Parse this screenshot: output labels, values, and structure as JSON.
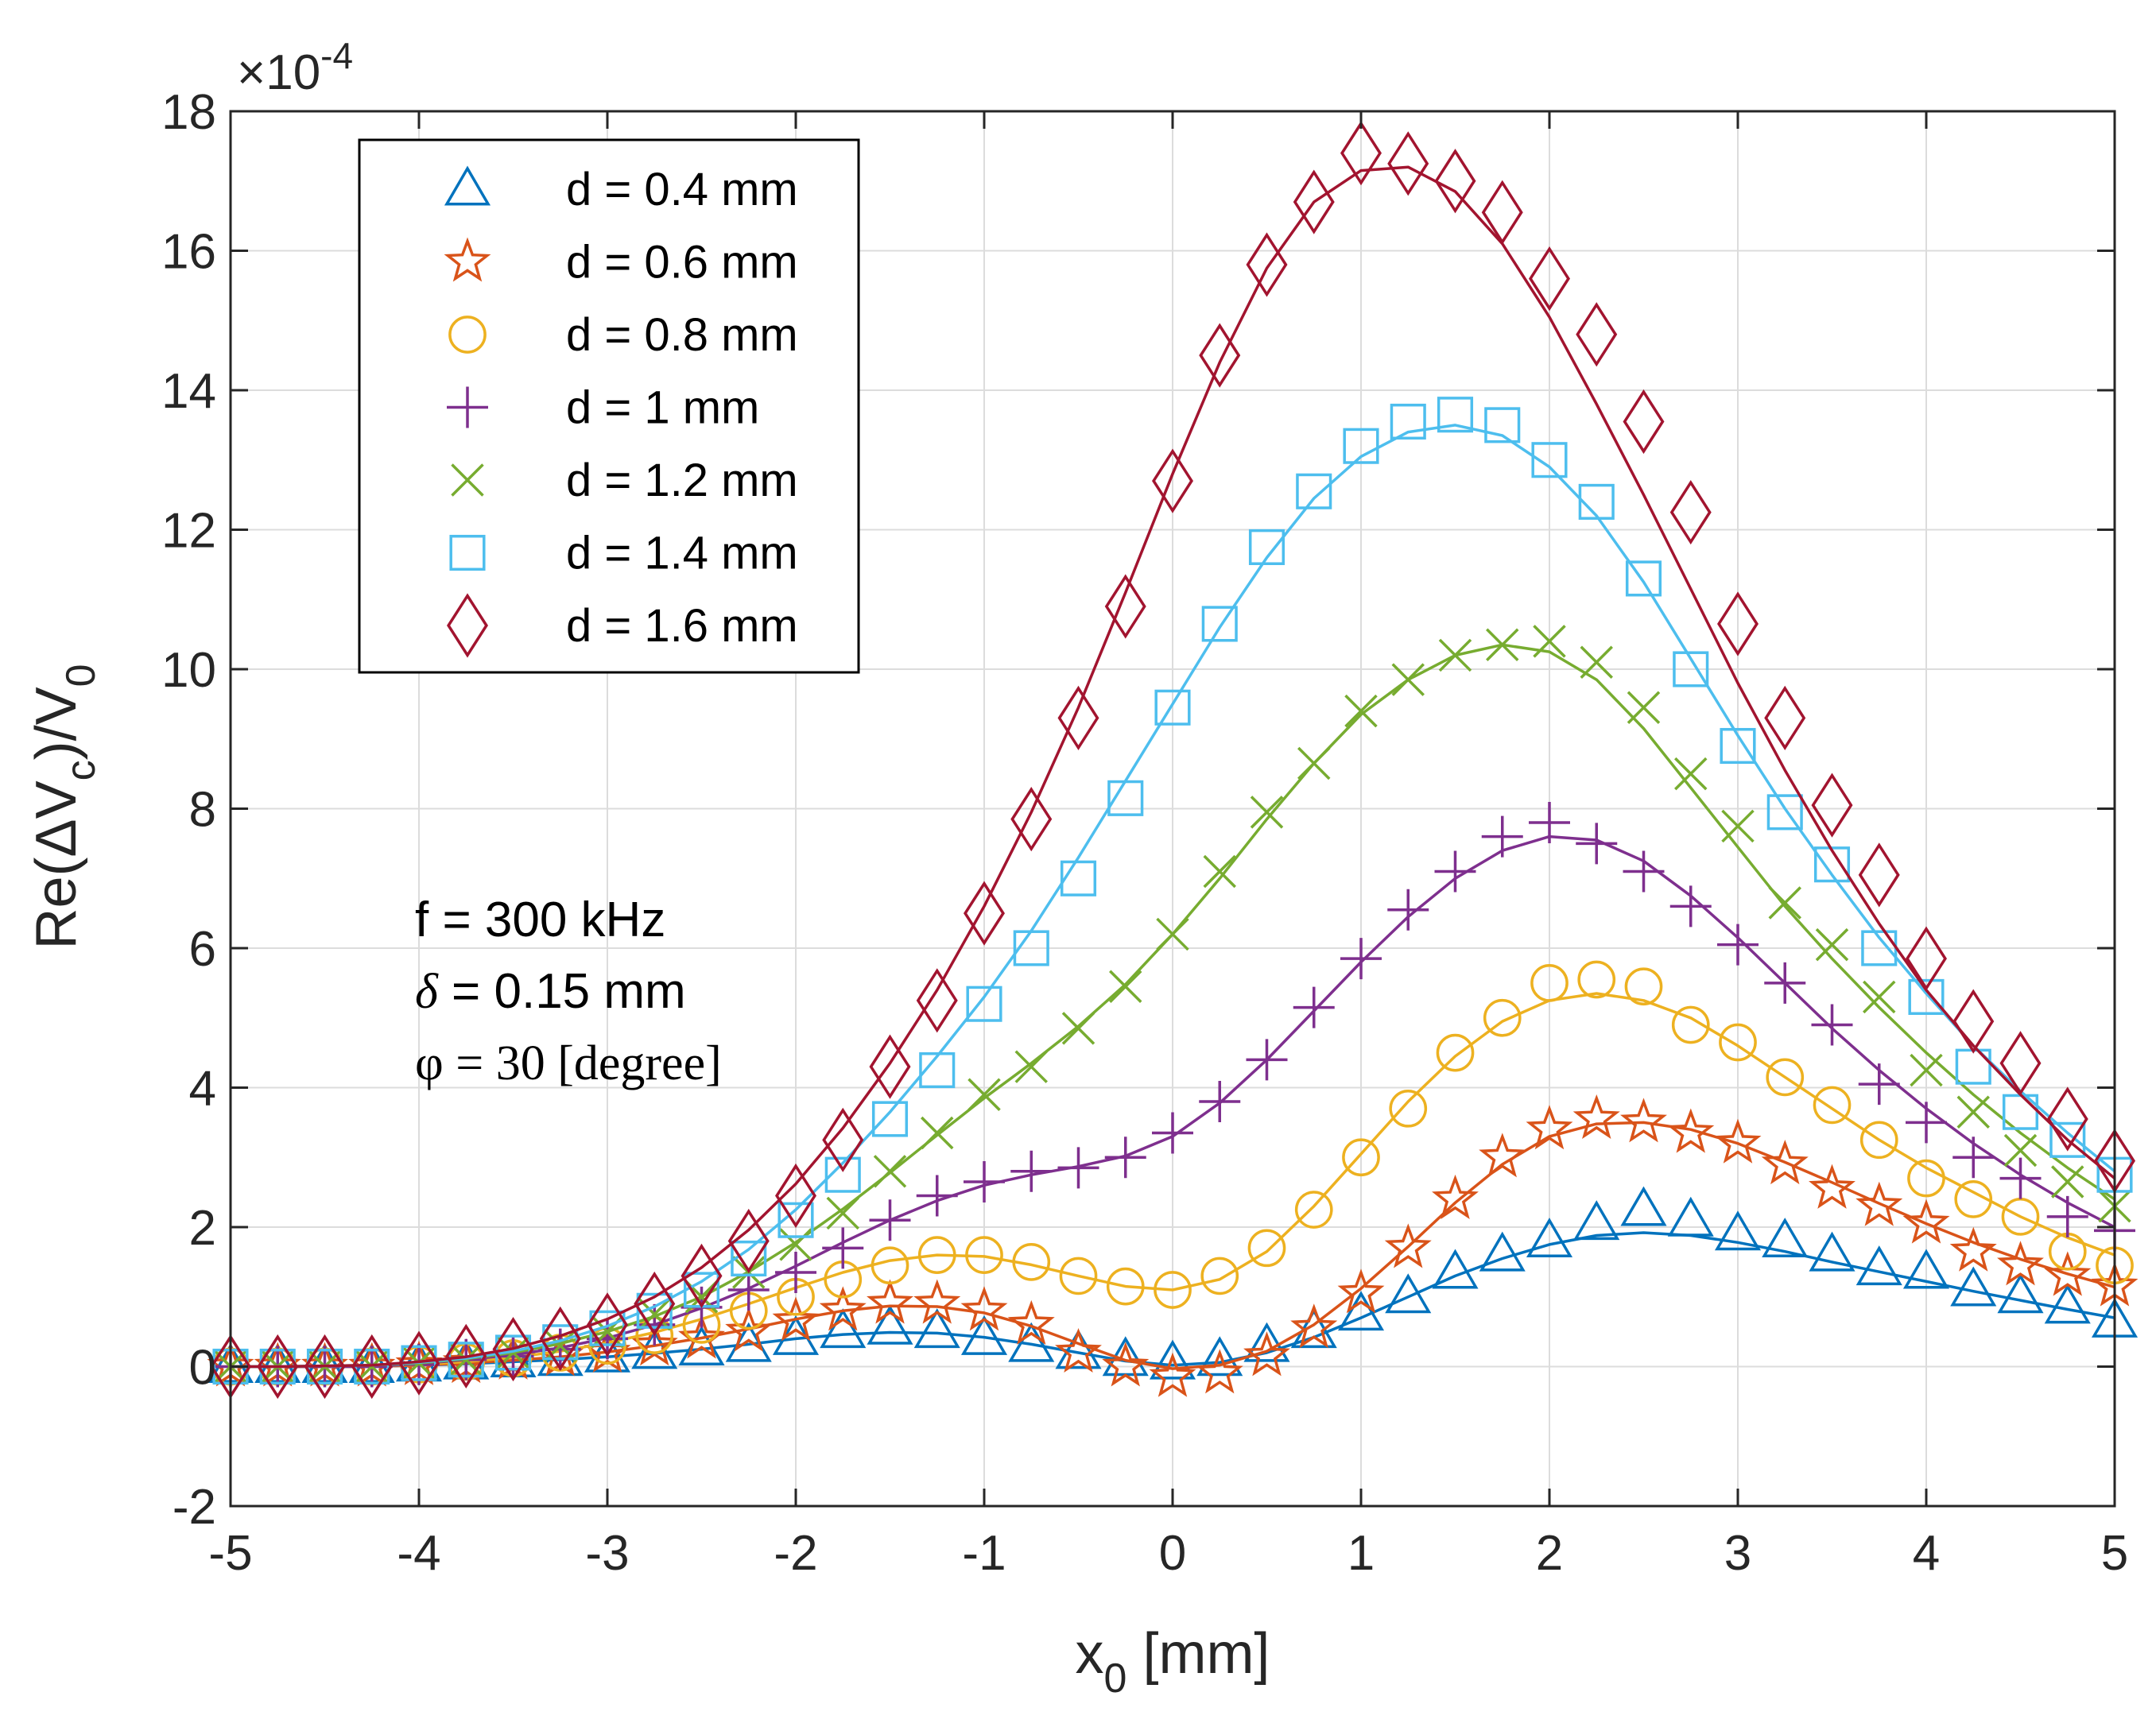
{
  "chart_data": {
    "type": "line",
    "xlabel_main": "x",
    "xlabel_sub": "0",
    "xlabel_unit": " [mm]",
    "ylabel_main": "Re(ΔV",
    "ylabel_sub1": "c",
    "ylabel_mid": ")/V",
    "ylabel_sub2": "0",
    "exponent_prefix": "×10",
    "exponent_power": "-4",
    "xlim": [
      -5,
      5
    ],
    "ylim": [
      -2,
      18
    ],
    "xticks": [
      -5,
      -4,
      -3,
      -2,
      -1,
      0,
      1,
      2,
      3,
      4,
      5
    ],
    "yticks": [
      -2,
      0,
      2,
      4,
      6,
      8,
      10,
      12,
      14,
      16,
      18
    ],
    "grid": true,
    "legend_position": "top-left",
    "annotations": {
      "freq": "f = 300 kHz",
      "delta_sym": "δ",
      "delta_val": " = 0.15 mm",
      "phi": "φ = 30 [degree]"
    },
    "x": [
      -5,
      -4.75,
      -4.5,
      -4.25,
      -4,
      -3.75,
      -3.5,
      -3.25,
      -3,
      -2.75,
      -2.5,
      -2.25,
      -2,
      -1.75,
      -1.5,
      -1.25,
      -1,
      -0.75,
      -0.5,
      -0.25,
      0,
      0.25,
      0.5,
      0.75,
      1,
      1.25,
      1.5,
      1.75,
      2,
      2.25,
      2.5,
      2.75,
      3,
      3.25,
      3.5,
      3.75,
      4,
      4.25,
      4.5,
      4.75,
      5
    ],
    "series": [
      {
        "name": "d = 0.4 mm",
        "color": "#0072BD",
        "marker": "triangle",
        "values": [
          0,
          0,
          0,
          0,
          0.02,
          0.05,
          0.08,
          0.1,
          0.15,
          0.2,
          0.25,
          0.3,
          0.4,
          0.5,
          0.55,
          0.5,
          0.4,
          0.3,
          0.2,
          0.1,
          0.05,
          0.1,
          0.3,
          0.5,
          0.75,
          1.0,
          1.35,
          1.6,
          1.8,
          2.05,
          2.25,
          2.1,
          1.9,
          1.8,
          1.6,
          1.4,
          1.35,
          1.1,
          1.0,
          0.85,
          0.65
        ],
        "fit": [
          0,
          0,
          0,
          0,
          0.02,
          0.04,
          0.07,
          0.1,
          0.14,
          0.19,
          0.25,
          0.32,
          0.4,
          0.46,
          0.49,
          0.48,
          0.42,
          0.32,
          0.2,
          0.08,
          0.02,
          0.06,
          0.2,
          0.42,
          0.7,
          1.0,
          1.3,
          1.55,
          1.75,
          1.88,
          1.92,
          1.88,
          1.78,
          1.65,
          1.5,
          1.36,
          1.22,
          1.08,
          0.95,
          0.82,
          0.7
        ]
      },
      {
        "name": "d = 0.6 mm",
        "color": "#D95319",
        "marker": "star",
        "values": [
          0,
          0,
          0,
          0,
          0.02,
          0.05,
          0.1,
          0.15,
          0.2,
          0.3,
          0.4,
          0.5,
          0.65,
          0.8,
          0.9,
          0.9,
          0.8,
          0.6,
          0.2,
          0,
          -0.15,
          -0.1,
          0.15,
          0.55,
          1.05,
          1.7,
          2.4,
          3.0,
          3.4,
          3.55,
          3.5,
          3.35,
          3.2,
          2.9,
          2.55,
          2.3,
          2.05,
          1.65,
          1.45,
          1.3,
          1.15
        ],
        "fit": [
          0,
          0,
          0,
          0,
          0.02,
          0.05,
          0.09,
          0.14,
          0.21,
          0.3,
          0.41,
          0.54,
          0.68,
          0.8,
          0.87,
          0.86,
          0.77,
          0.58,
          0.33,
          0.09,
          -0.03,
          0.02,
          0.22,
          0.6,
          1.12,
          1.72,
          2.35,
          2.9,
          3.3,
          3.48,
          3.5,
          3.4,
          3.2,
          2.93,
          2.64,
          2.34,
          2.05,
          1.78,
          1.54,
          1.33,
          1.14
        ]
      },
      {
        "name": "d = 0.8 mm",
        "color": "#EDB120",
        "marker": "circle",
        "values": [
          0,
          0,
          0,
          0,
          0.03,
          0.07,
          0.12,
          0.2,
          0.3,
          0.45,
          0.6,
          0.8,
          1.0,
          1.25,
          1.45,
          1.6,
          1.6,
          1.5,
          1.3,
          1.15,
          1.1,
          1.3,
          1.7,
          2.25,
          3.0,
          3.7,
          4.5,
          5.0,
          5.5,
          5.55,
          5.45,
          4.9,
          4.65,
          4.15,
          3.75,
          3.25,
          2.7,
          2.4,
          2.15,
          1.65,
          1.45
        ],
        "fit": [
          0,
          0,
          0,
          0,
          0.03,
          0.07,
          0.13,
          0.22,
          0.34,
          0.49,
          0.68,
          0.9,
          1.13,
          1.35,
          1.52,
          1.6,
          1.58,
          1.46,
          1.3,
          1.15,
          1.1,
          1.25,
          1.65,
          2.3,
          3.05,
          3.8,
          4.45,
          4.95,
          5.25,
          5.35,
          5.25,
          5.0,
          4.6,
          4.15,
          3.7,
          3.25,
          2.85,
          2.5,
          2.15,
          1.85,
          1.6
        ]
      },
      {
        "name": "d = 1 mm",
        "color": "#7E2F8E",
        "marker": "plus",
        "values": [
          0,
          0,
          0,
          0,
          0.03,
          0.1,
          0.15,
          0.25,
          0.4,
          0.6,
          0.85,
          1.1,
          1.35,
          1.7,
          2.1,
          2.45,
          2.65,
          2.8,
          2.85,
          3.0,
          3.35,
          3.8,
          4.4,
          5.15,
          5.85,
          6.55,
          7.1,
          7.6,
          7.8,
          7.5,
          7.1,
          6.6,
          6.05,
          5.5,
          4.9,
          4.05,
          3.5,
          3.0,
          2.7,
          2.15,
          1.95
        ],
        "fit": [
          0,
          0,
          0,
          0,
          0.04,
          0.1,
          0.17,
          0.27,
          0.41,
          0.6,
          0.84,
          1.12,
          1.44,
          1.78,
          2.1,
          2.38,
          2.6,
          2.75,
          2.87,
          3.02,
          3.3,
          3.78,
          4.4,
          5.1,
          5.8,
          6.45,
          7.0,
          7.4,
          7.6,
          7.55,
          7.25,
          6.75,
          6.15,
          5.5,
          4.85,
          4.25,
          3.7,
          3.2,
          2.75,
          2.35,
          2.0
        ]
      },
      {
        "name": "d = 1.2 mm",
        "color": "#77AC30",
        "marker": "cross",
        "values": [
          0,
          0,
          0,
          0,
          0.05,
          0.1,
          0.2,
          0.3,
          0.5,
          0.75,
          1.0,
          1.35,
          1.75,
          2.2,
          2.8,
          3.35,
          3.9,
          4.3,
          4.85,
          5.45,
          6.2,
          7.1,
          7.95,
          8.65,
          9.4,
          9.85,
          10.2,
          10.35,
          10.4,
          10.1,
          9.45,
          8.5,
          7.75,
          6.65,
          6.05,
          5.3,
          4.25,
          3.65,
          3.1,
          2.65,
          2.3
        ],
        "fit": [
          0,
          0,
          0.01,
          0.02,
          0.05,
          0.11,
          0.2,
          0.33,
          0.5,
          0.72,
          1.0,
          1.36,
          1.78,
          2.26,
          2.78,
          3.32,
          3.85,
          4.35,
          4.88,
          5.48,
          6.2,
          7.0,
          7.85,
          8.65,
          9.35,
          9.85,
          10.2,
          10.35,
          10.25,
          9.85,
          9.15,
          8.3,
          7.45,
          6.6,
          5.85,
          5.15,
          4.5,
          3.9,
          3.35,
          2.85,
          2.4
        ]
      },
      {
        "name": "d = 1.4 mm",
        "color": "#4DBEEE",
        "marker": "square",
        "values": [
          0,
          0,
          0,
          0,
          0.05,
          0.1,
          0.2,
          0.35,
          0.55,
          0.8,
          1.1,
          1.55,
          2.1,
          2.75,
          3.55,
          4.25,
          5.2,
          6.0,
          7.0,
          8.15,
          9.45,
          10.65,
          11.75,
          12.55,
          13.2,
          13.55,
          13.65,
          13.5,
          13.0,
          12.4,
          11.3,
          10.0,
          8.9,
          7.95,
          7.2,
          6.0,
          5.3,
          4.3,
          3.65,
          3.25,
          2.75
        ],
        "fit": [
          0,
          0,
          0.01,
          0.02,
          0.06,
          0.12,
          0.22,
          0.37,
          0.58,
          0.86,
          1.22,
          1.68,
          2.25,
          2.92,
          3.65,
          4.45,
          5.3,
          6.25,
          7.3,
          8.4,
          9.5,
          10.6,
          11.6,
          12.45,
          13.05,
          13.4,
          13.5,
          13.35,
          12.9,
          12.2,
          11.25,
          10.15,
          9.05,
          8.0,
          7.05,
          6.15,
          5.35,
          4.6,
          3.95,
          3.35,
          2.8
        ]
      },
      {
        "name": "d = 1.6 mm",
        "color": "#A2142F",
        "marker": "diamond",
        "values": [
          0,
          0,
          0,
          0,
          0.05,
          0.15,
          0.25,
          0.4,
          0.6,
          0.9,
          1.3,
          1.8,
          2.45,
          3.25,
          4.3,
          5.25,
          6.5,
          7.85,
          9.3,
          10.9,
          12.7,
          14.5,
          15.8,
          16.7,
          17.4,
          17.25,
          17.0,
          16.55,
          15.6,
          14.8,
          13.55,
          12.25,
          10.65,
          9.3,
          8.05,
          7.05,
          5.85,
          4.95,
          4.35,
          3.55,
          2.95
        ],
        "fit": [
          0,
          0,
          0.01,
          0.02,
          0.07,
          0.14,
          0.26,
          0.44,
          0.68,
          1.0,
          1.42,
          1.96,
          2.62,
          3.42,
          4.35,
          5.4,
          6.6,
          7.95,
          9.45,
          11.1,
          12.8,
          14.4,
          15.75,
          16.7,
          17.15,
          17.2,
          16.85,
          16.1,
          15.05,
          13.8,
          12.5,
          11.15,
          9.8,
          8.55,
          7.4,
          6.35,
          5.4,
          4.6,
          3.9,
          3.25,
          2.7
        ]
      }
    ]
  }
}
